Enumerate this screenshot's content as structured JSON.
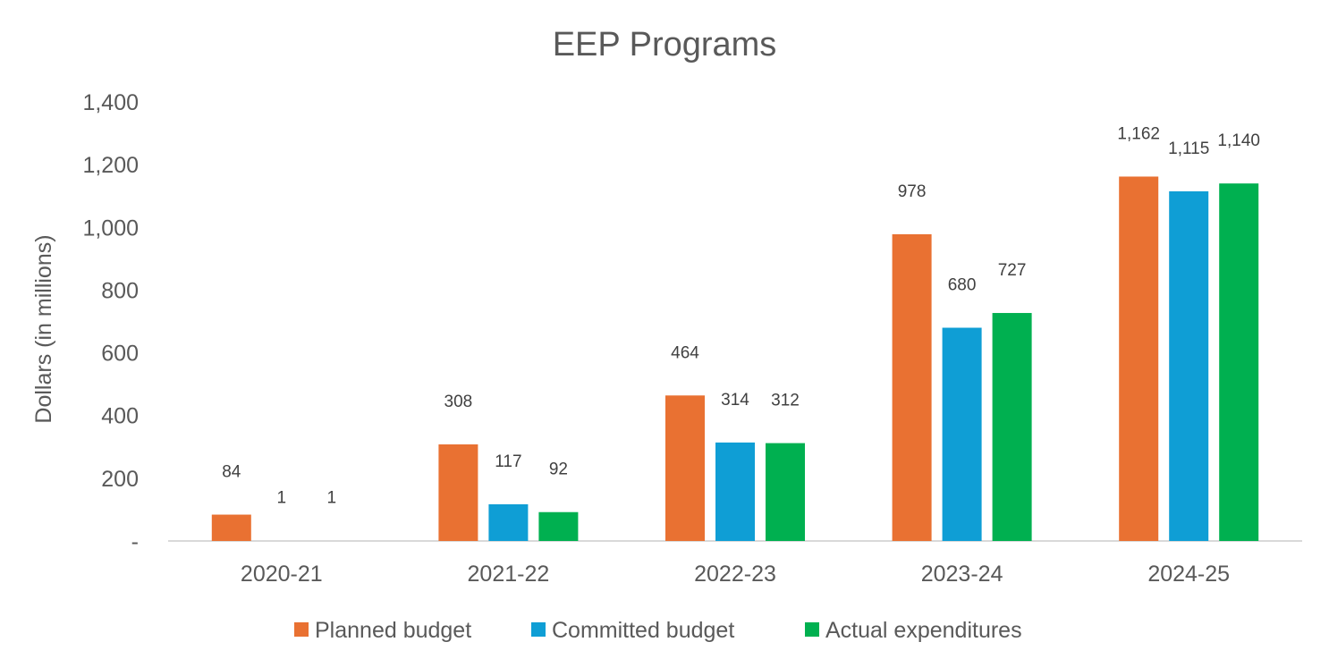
{
  "chart_data": {
    "type": "bar",
    "title": "EEP Programs",
    "xlabel": "",
    "ylabel": "Dollars (in millions)",
    "ylim": [
      0,
      1400
    ],
    "yticks": [
      0,
      200,
      400,
      600,
      800,
      1000,
      1200,
      1400
    ],
    "ytick_labels": [
      "-",
      "200",
      "400",
      "600",
      "800",
      "1,000",
      "1,200",
      "1,400"
    ],
    "categories": [
      "2020-21",
      "2021-22",
      "2022-23",
      "2023-24",
      "2024-25"
    ],
    "series": [
      {
        "name": "Planned budget",
        "color": "#E97132",
        "values": [
          84,
          308,
          464,
          978,
          1162
        ],
        "labels": [
          "84",
          "308",
          "464",
          "978",
          "1,162"
        ]
      },
      {
        "name": "Committed budget",
        "color": "#0F9ED5",
        "values": [
          1,
          117,
          314,
          680,
          1115
        ],
        "labels": [
          "1",
          "117",
          "314",
          "680",
          "1,115"
        ]
      },
      {
        "name": "Actual expenditures",
        "color": "#00B050",
        "values": [
          1,
          92,
          312,
          727,
          1140
        ],
        "labels": [
          "1",
          "92",
          "312",
          "727",
          "1,140"
        ]
      }
    ],
    "grid": false,
    "legend_position": "bottom"
  },
  "colors": {
    "text": "#595959",
    "data_label": "#404040",
    "axis_line": "#D9D9D9"
  }
}
